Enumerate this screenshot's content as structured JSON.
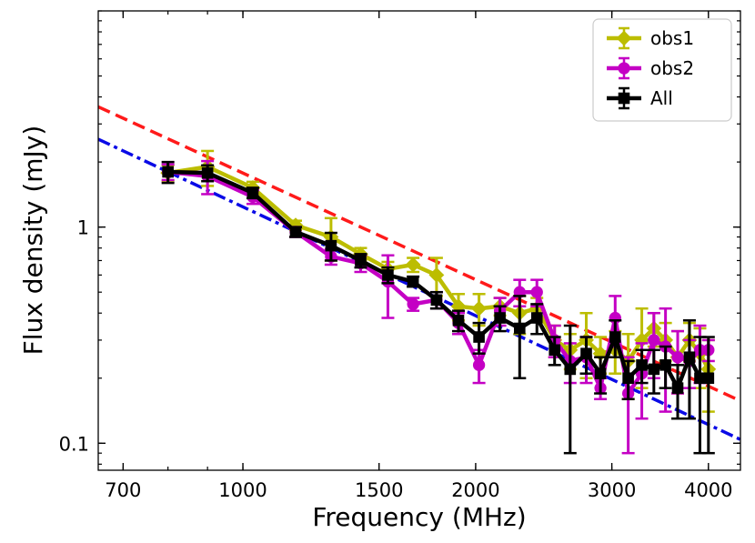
{
  "chart_data": {
    "type": "line",
    "title": "",
    "xlabel": "Frequency (MHz)",
    "ylabel": "Flux density (mJy)",
    "xscale": "log",
    "yscale": "log",
    "xlim": [
      650,
      4400
    ],
    "ylim": [
      0.075,
      10
    ],
    "xticks": [
      700,
      1000,
      1500,
      2000,
      3000,
      4000
    ],
    "xtick_labels": [
      "700",
      "1000",
      "1500",
      "2000",
      "3000",
      "4000"
    ],
    "yticks": [
      0.1,
      1
    ],
    "ytick_labels": [
      "0.1",
      "1"
    ],
    "legend_position": "top-right",
    "series": [
      {
        "name": "obs1",
        "color": "#bcbd00",
        "marker": "diamond",
        "x": [
          800,
          900,
          1030,
          1170,
          1300,
          1420,
          1540,
          1660,
          1780,
          1900,
          2020,
          2150,
          2280,
          2400,
          2530,
          2650,
          2780,
          2900,
          3030,
          3150,
          3280,
          3400,
          3520,
          3650,
          3780,
          3900,
          4000
        ],
        "y": [
          1.78,
          1.9,
          1.52,
          1.02,
          0.9,
          0.75,
          0.64,
          0.67,
          0.6,
          0.43,
          0.42,
          0.43,
          0.4,
          0.42,
          0.3,
          0.27,
          0.3,
          0.26,
          0.27,
          0.24,
          0.3,
          0.34,
          0.3,
          0.25,
          0.3,
          0.26,
          0.22
        ],
        "err": [
          0.15,
          0.35,
          0.1,
          0.05,
          0.2,
          0.05,
          0.05,
          0.05,
          0.12,
          0.06,
          0.07,
          0.04,
          0.08,
          0.05,
          0.05,
          0.05,
          0.1,
          0.05,
          0.06,
          0.08,
          0.12,
          0.06,
          0.06,
          0.08,
          0.06,
          0.08,
          0.08
        ]
      },
      {
        "name": "obs2",
        "color": "#c400c4",
        "marker": "circle",
        "x": [
          800,
          900,
          1030,
          1170,
          1300,
          1420,
          1540,
          1660,
          1780,
          1900,
          2020,
          2150,
          2280,
          2400,
          2530,
          2650,
          2780,
          2900,
          3030,
          3150,
          3280,
          3400,
          3520,
          3650,
          3780,
          3900,
          4000
        ],
        "y": [
          1.8,
          1.72,
          1.38,
          0.95,
          0.73,
          0.68,
          0.56,
          0.44,
          0.46,
          0.36,
          0.23,
          0.41,
          0.5,
          0.5,
          0.3,
          0.24,
          0.25,
          0.18,
          0.38,
          0.17,
          0.21,
          0.3,
          0.28,
          0.25,
          0.24,
          0.27,
          0.27
        ],
        "err": [
          0.15,
          0.3,
          0.1,
          0.05,
          0.06,
          0.06,
          0.18,
          0.03,
          0.04,
          0.04,
          0.04,
          0.06,
          0.07,
          0.07,
          0.05,
          0.05,
          0.06,
          0.02,
          0.1,
          0.08,
          0.08,
          0.1,
          0.14,
          0.08,
          0.06,
          0.08,
          0.03
        ]
      },
      {
        "name": "All",
        "color": "#000000",
        "marker": "square",
        "x": [
          800,
          900,
          1030,
          1170,
          1300,
          1420,
          1540,
          1660,
          1780,
          1900,
          2020,
          2150,
          2280,
          2400,
          2530,
          2650,
          2780,
          2900,
          3030,
          3150,
          3280,
          3400,
          3520,
          3650,
          3780,
          3900,
          4000
        ],
        "y": [
          1.8,
          1.78,
          1.44,
          0.95,
          0.82,
          0.7,
          0.6,
          0.56,
          0.46,
          0.37,
          0.31,
          0.38,
          0.34,
          0.38,
          0.27,
          0.22,
          0.26,
          0.21,
          0.31,
          0.2,
          0.23,
          0.22,
          0.23,
          0.18,
          0.25,
          0.2,
          0.2
        ],
        "err": [
          0.2,
          0.15,
          0.08,
          0.05,
          0.12,
          0.05,
          0.05,
          0.03,
          0.04,
          0.04,
          0.05,
          0.05,
          0.14,
          0.06,
          0.04,
          0.13,
          0.05,
          0.04,
          0.06,
          0.04,
          0.04,
          0.05,
          0.05,
          0.05,
          0.12,
          0.11,
          0.11
        ]
      }
    ],
    "fits": [
      {
        "name": "red dashed fit",
        "color": "#ff1a1a",
        "style": "dashed",
        "x": [
          650,
          4400
        ],
        "y": [
          3.6,
          0.157
        ]
      },
      {
        "name": "blue dash-dot fit",
        "color": "#0a0ae6",
        "style": "dashdot",
        "x": [
          650,
          4400
        ],
        "y": [
          2.55,
          0.104
        ]
      }
    ]
  }
}
